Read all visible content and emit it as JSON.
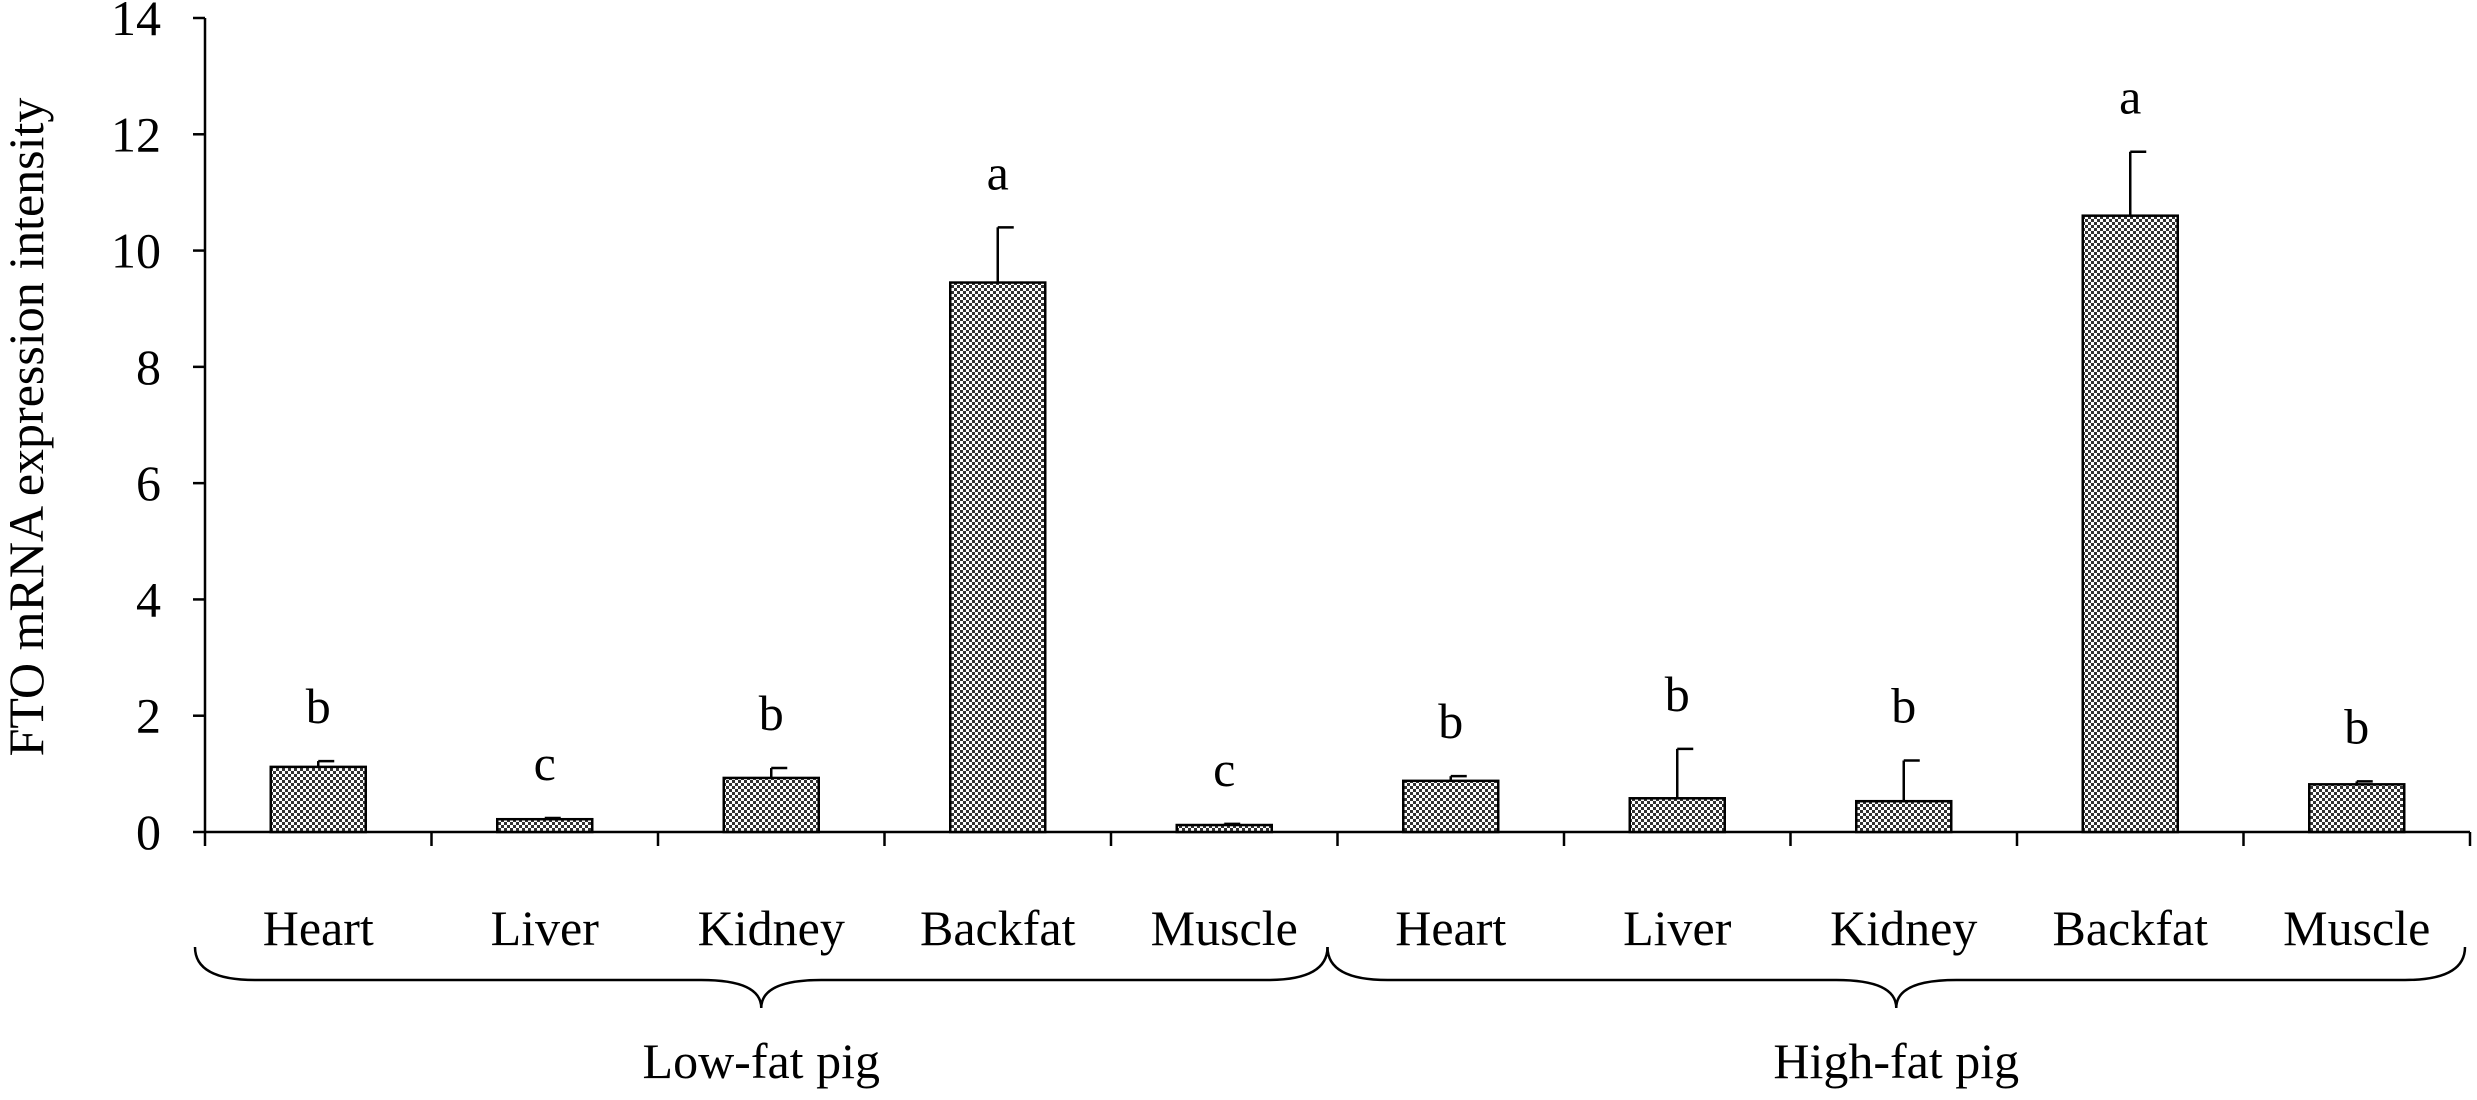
{
  "chart_data": {
    "type": "bar",
    "ylabel": "FTO mRNA expression intensity",
    "ylim": [
      0,
      14
    ],
    "yticks": [
      "0",
      "2",
      "4",
      "6",
      "8",
      "10",
      "12",
      "14"
    ],
    "grid": false,
    "groups": [
      {
        "name": "Low-fat pig",
        "categories": [
          "Heart",
          "Liver",
          "Kidney",
          "Backfat",
          "Muscle"
        ],
        "values": [
          1.12,
          0.22,
          0.93,
          9.45,
          0.12
        ],
        "errors": [
          0.1,
          0.02,
          0.17,
          0.95,
          0.02
        ],
        "letters": [
          "b",
          "c",
          "b",
          "a",
          "c"
        ]
      },
      {
        "name": "High-fat pig",
        "categories": [
          "Heart",
          "Liver",
          "Kidney",
          "Backfat",
          "Muscle"
        ],
        "values": [
          0.88,
          0.58,
          0.53,
          10.6,
          0.82
        ],
        "errors": [
          0.08,
          0.85,
          0.7,
          1.1,
          0.05
        ],
        "letters": [
          "b",
          "b",
          "b",
          "a",
          "b"
        ]
      }
    ],
    "colors": {
      "bar_fill": "#9a9a9a",
      "axis": "#000000"
    }
  }
}
